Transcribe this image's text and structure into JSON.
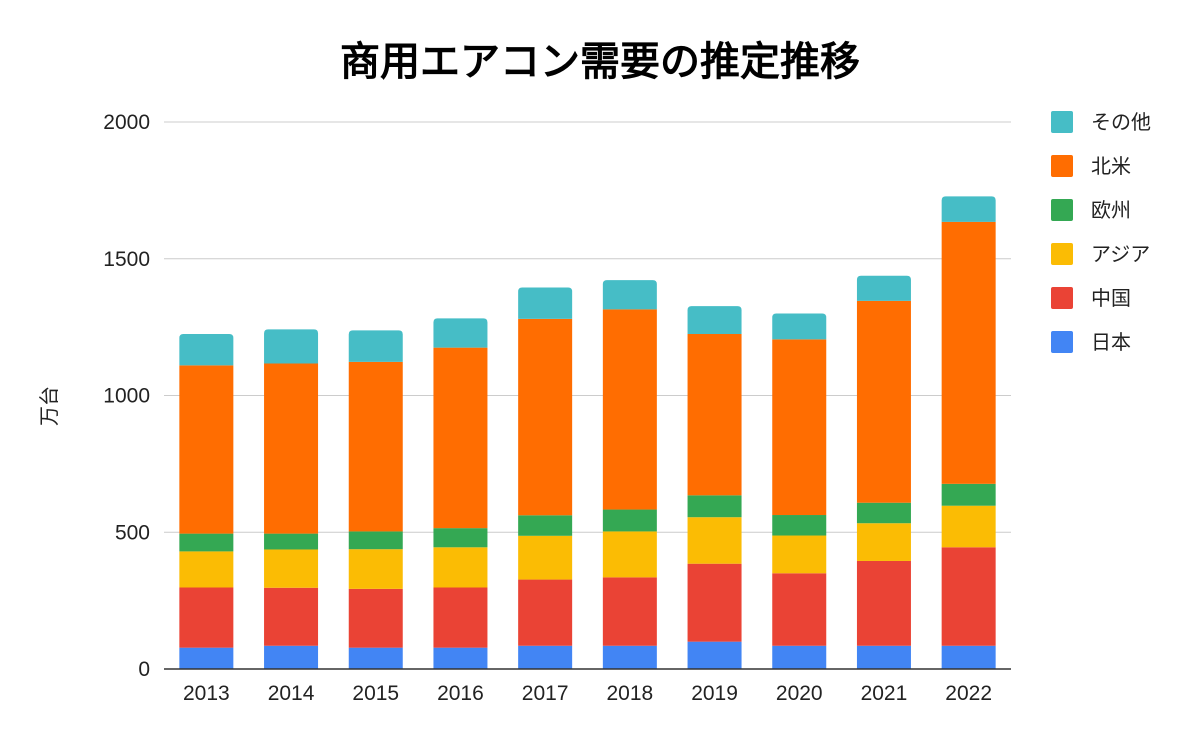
{
  "chart_data": {
    "type": "stacked-bar",
    "title": "商用エアコン需要の推定推移",
    "xlabel": "",
    "ylabel": "万台",
    "ylim": [
      0,
      2000
    ],
    "yticks": [
      0,
      500,
      1000,
      1500,
      2000
    ],
    "grid": true,
    "legend_position": "right",
    "categories": [
      "2013",
      "2014",
      "2015",
      "2016",
      "2017",
      "2018",
      "2019",
      "2020",
      "2021",
      "2022"
    ],
    "series": [
      {
        "name": "日本",
        "color": "#4285F4",
        "values": [
          78,
          85,
          78,
          78,
          85,
          85,
          100,
          85,
          85,
          85
        ]
      },
      {
        "name": "中国",
        "color": "#EA4335",
        "values": [
          220,
          212,
          215,
          220,
          242,
          250,
          285,
          265,
          310,
          360
        ]
      },
      {
        "name": "アジア",
        "color": "#FBBC04",
        "values": [
          132,
          140,
          145,
          147,
          160,
          168,
          170,
          138,
          138,
          152
        ]
      },
      {
        "name": "欧州",
        "color": "#34A853",
        "values": [
          65,
          58,
          65,
          70,
          75,
          80,
          80,
          75,
          75,
          80
        ]
      },
      {
        "name": "北米",
        "color": "#FF6D01",
        "values": [
          615,
          622,
          620,
          660,
          718,
          732,
          590,
          642,
          738,
          958
        ]
      },
      {
        "name": "その他",
        "color": "#46BDC6",
        "values": [
          115,
          125,
          115,
          107,
          115,
          107,
          102,
          95,
          92,
          93
        ]
      }
    ],
    "legend_order": [
      "その他",
      "北米",
      "欧州",
      "アジア",
      "中国",
      "日本"
    ]
  }
}
